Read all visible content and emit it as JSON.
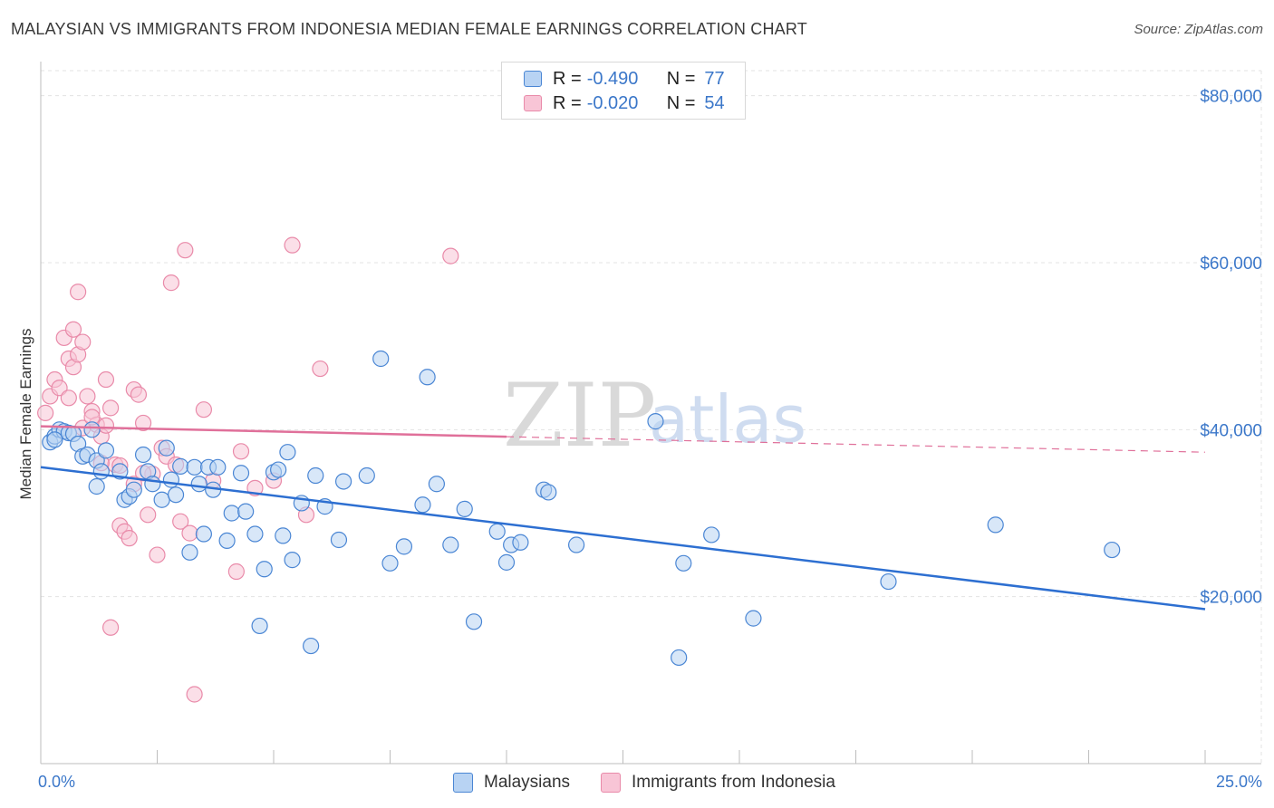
{
  "title": "MALAYSIAN VS IMMIGRANTS FROM INDONESIA MEDIAN FEMALE EARNINGS CORRELATION CHART",
  "source": "Source: ZipAtlas.com",
  "watermark": {
    "zip": "ZIP",
    "atlas": "atlas"
  },
  "legend_stats": [
    {
      "r_label": "R =",
      "r_value": "-0.490",
      "n_label": "N =",
      "n_value": "77"
    },
    {
      "r_label": "R =",
      "r_value": "-0.020",
      "n_label": "N =",
      "n_value": "54"
    }
  ],
  "bottom_legend": [
    "Malaysians",
    "Immigrants from Indonesia"
  ],
  "colors": {
    "blue_fill": "#b8d3f3",
    "blue_stroke": "#4a86d4",
    "blue_line": "#2d6fd1",
    "pink_fill": "#f8c5d6",
    "pink_stroke": "#e98aa9",
    "pink_line": "#e0709a",
    "grid": "#e3e3e3",
    "tick_text": "#3b77c9"
  },
  "chart_data": {
    "type": "scatter",
    "title": "MALAYSIAN VS IMMIGRANTS FROM INDONESIA MEDIAN FEMALE EARNINGS CORRELATION CHART",
    "xlabel": "",
    "ylabel": "Median Female Earnings",
    "xlim": [
      0,
      25
    ],
    "ylim": [
      0,
      83000
    ],
    "x_tick_labels": [
      "0.0%",
      "25.0%"
    ],
    "y_ticks": [
      20000,
      40000,
      60000,
      80000
    ],
    "y_tick_labels": [
      "$20,000",
      "$40,000",
      "$60,000",
      "$80,000"
    ],
    "grid": true,
    "series": [
      {
        "name": "Malaysians",
        "r": -0.49,
        "n": 77,
        "trend": {
          "x0": 0,
          "y0": 35500,
          "x1": 25,
          "y1": 18500,
          "solid_until": 25
        },
        "points": [
          [
            0.2,
            38500
          ],
          [
            0.3,
            39200
          ],
          [
            0.4,
            40000
          ],
          [
            0.5,
            39800
          ],
          [
            0.6,
            39600
          ],
          [
            0.7,
            39500
          ],
          [
            0.8,
            38300
          ],
          [
            0.9,
            36800
          ],
          [
            1.0,
            37000
          ],
          [
            1.1,
            40000
          ],
          [
            1.2,
            36300
          ],
          [
            1.3,
            35000
          ],
          [
            1.4,
            37500
          ],
          [
            1.2,
            33200
          ],
          [
            1.7,
            35000
          ],
          [
            1.8,
            31600
          ],
          [
            1.9,
            32000
          ],
          [
            2.0,
            32800
          ],
          [
            2.2,
            37000
          ],
          [
            2.3,
            35000
          ],
          [
            2.4,
            33500
          ],
          [
            2.6,
            31600
          ],
          [
            2.7,
            37800
          ],
          [
            2.8,
            34000
          ],
          [
            2.9,
            32200
          ],
          [
            3.0,
            35600
          ],
          [
            3.2,
            25300
          ],
          [
            3.3,
            35500
          ],
          [
            3.4,
            33500
          ],
          [
            3.5,
            27500
          ],
          [
            3.6,
            35500
          ],
          [
            3.7,
            32800
          ],
          [
            3.8,
            35500
          ],
          [
            4.0,
            26700
          ],
          [
            4.1,
            30000
          ],
          [
            4.3,
            34800
          ],
          [
            4.4,
            30200
          ],
          [
            4.6,
            27500
          ],
          [
            4.7,
            16500
          ],
          [
            4.8,
            23300
          ],
          [
            5.0,
            34900
          ],
          [
            5.1,
            35200
          ],
          [
            5.2,
            27300
          ],
          [
            5.3,
            37300
          ],
          [
            5.4,
            24400
          ],
          [
            5.6,
            31200
          ],
          [
            5.8,
            14100
          ],
          [
            5.9,
            34500
          ],
          [
            6.1,
            30800
          ],
          [
            6.4,
            26800
          ],
          [
            6.5,
            33800
          ],
          [
            7.0,
            34500
          ],
          [
            7.3,
            48500
          ],
          [
            7.5,
            24000
          ],
          [
            7.8,
            26000
          ],
          [
            8.2,
            31000
          ],
          [
            8.3,
            46300
          ],
          [
            8.5,
            33500
          ],
          [
            8.8,
            26200
          ],
          [
            9.1,
            30500
          ],
          [
            9.3,
            17000
          ],
          [
            9.8,
            27800
          ],
          [
            10.0,
            24100
          ],
          [
            10.1,
            26200
          ],
          [
            10.3,
            26500
          ],
          [
            10.8,
            32800
          ],
          [
            10.9,
            32500
          ],
          [
            11.5,
            26200
          ],
          [
            13.2,
            41000
          ],
          [
            13.8,
            24000
          ],
          [
            14.4,
            27400
          ],
          [
            15.3,
            17400
          ],
          [
            13.7,
            12700
          ],
          [
            18.2,
            21800
          ],
          [
            20.5,
            28600
          ],
          [
            23.0,
            25600
          ],
          [
            0.3,
            38800
          ]
        ]
      },
      {
        "name": "Immigrants from Indonesia",
        "r": -0.02,
        "n": 54,
        "trend": {
          "x0": 0,
          "y0": 40400,
          "x1": 25,
          "y1": 37300,
          "solid_until": 10
        },
        "points": [
          [
            0.1,
            42000
          ],
          [
            0.2,
            44000
          ],
          [
            0.3,
            46000
          ],
          [
            0.4,
            45000
          ],
          [
            0.5,
            51000
          ],
          [
            0.6,
            48500
          ],
          [
            0.7,
            47500
          ],
          [
            0.8,
            49000
          ],
          [
            0.9,
            50500
          ],
          [
            0.7,
            52000
          ],
          [
            0.8,
            56500
          ],
          [
            1.0,
            44000
          ],
          [
            1.1,
            42200
          ],
          [
            1.2,
            40600
          ],
          [
            1.3,
            39200
          ],
          [
            1.4,
            46000
          ],
          [
            1.5,
            42600
          ],
          [
            1.6,
            35800
          ],
          [
            1.7,
            28500
          ],
          [
            1.8,
            27800
          ],
          [
            1.9,
            27000
          ],
          [
            2.0,
            44800
          ],
          [
            2.1,
            44200
          ],
          [
            2.2,
            40800
          ],
          [
            2.3,
            29800
          ],
          [
            2.4,
            34700
          ],
          [
            2.5,
            25000
          ],
          [
            2.6,
            37800
          ],
          [
            2.7,
            36800
          ],
          [
            2.8,
            57600
          ],
          [
            2.9,
            35800
          ],
          [
            3.0,
            29000
          ],
          [
            3.1,
            61500
          ],
          [
            3.2,
            27600
          ],
          [
            3.3,
            8300
          ],
          [
            3.5,
            42400
          ],
          [
            3.7,
            33900
          ],
          [
            4.2,
            23000
          ],
          [
            4.3,
            37400
          ],
          [
            4.6,
            33000
          ],
          [
            5.0,
            33900
          ],
          [
            5.4,
            62100
          ],
          [
            5.7,
            29800
          ],
          [
            6.0,
            47300
          ],
          [
            8.8,
            60800
          ],
          [
            1.5,
            16300
          ],
          [
            0.9,
            40200
          ],
          [
            1.4,
            40500
          ],
          [
            1.7,
            35700
          ],
          [
            2.0,
            33500
          ],
          [
            1.1,
            41500
          ],
          [
            0.6,
            43800
          ],
          [
            1.3,
            36000
          ],
          [
            2.2,
            34800
          ]
        ]
      }
    ]
  }
}
